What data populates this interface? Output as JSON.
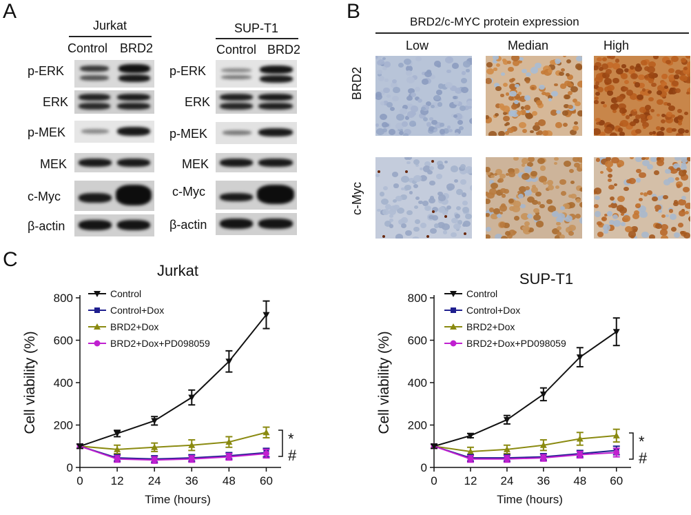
{
  "panels": {
    "a": "A",
    "b": "B",
    "c": "C"
  },
  "western": [
    {
      "cell_line": "Jurkat",
      "conditions": [
        "Control",
        "BRD2"
      ],
      "proteins": [
        "p-ERK",
        "ERK",
        "p-MEK",
        "MEK",
        "c-Myc",
        "β-actin"
      ]
    },
    {
      "cell_line": "SUP-T1",
      "conditions": [
        "Control",
        "BRD2"
      ],
      "proteins": [
        "p-ERK",
        "ERK",
        "p-MEK",
        "MEK",
        "c-Myc",
        "β-actin"
      ]
    }
  ],
  "ihc": {
    "title": "BRD2/c-MYC protein expression",
    "levels": [
      "Low",
      "Median",
      "High"
    ],
    "rows": [
      "BRD2",
      "c-Myc"
    ]
  },
  "significance": {
    "star": "*",
    "hash": "#"
  },
  "chart_data": [
    {
      "type": "line",
      "title": "Jurkat",
      "xlabel": "Time (hours)",
      "ylabel": "Cell viability (%)",
      "x": [
        0,
        12,
        24,
        36,
        48,
        60
      ],
      "xticks": [
        0,
        12,
        24,
        36,
        48,
        60
      ],
      "yticks": [
        0,
        200,
        400,
        600,
        800
      ],
      "xlim": [
        0,
        63
      ],
      "ylim": [
        0,
        800
      ],
      "legend_position": "top-left",
      "series": [
        {
          "name": "Control",
          "color": "#111111",
          "marker": "triangle-down",
          "values": [
            100,
            160,
            220,
            330,
            500,
            720
          ],
          "errors": [
            10,
            15,
            20,
            35,
            50,
            65
          ]
        },
        {
          "name": "Control+Dox",
          "color": "#1f1f8f",
          "marker": "square",
          "values": [
            100,
            45,
            40,
            45,
            55,
            70
          ],
          "errors": [
            10,
            15,
            15,
            15,
            15,
            20
          ]
        },
        {
          "name": "BRD2+Dox",
          "color": "#8a8a10",
          "marker": "triangle-up",
          "values": [
            100,
            85,
            95,
            105,
            120,
            165
          ],
          "errors": [
            10,
            20,
            20,
            25,
            25,
            25
          ]
        },
        {
          "name": "BRD2+Dox+PD098059",
          "color": "#c020d0",
          "marker": "circle",
          "values": [
            100,
            40,
            35,
            40,
            50,
            65
          ],
          "errors": [
            10,
            15,
            15,
            15,
            15,
            20
          ]
        }
      ]
    },
    {
      "type": "line",
      "title": "SUP-T1",
      "xlabel": "Time (hours)",
      "ylabel": "Cell viability (%)",
      "x": [
        0,
        12,
        24,
        36,
        48,
        60
      ],
      "xticks": [
        0,
        12,
        24,
        36,
        48,
        60
      ],
      "yticks": [
        0,
        200,
        400,
        600,
        800
      ],
      "xlim": [
        0,
        63
      ],
      "ylim": [
        0,
        800
      ],
      "legend_position": "top-left",
      "series": [
        {
          "name": "Control",
          "color": "#111111",
          "marker": "triangle-down",
          "values": [
            100,
            150,
            225,
            345,
            520,
            640
          ],
          "errors": [
            10,
            10,
            20,
            30,
            45,
            65
          ]
        },
        {
          "name": "Control+Dox",
          "color": "#1f1f8f",
          "marker": "square",
          "values": [
            100,
            45,
            45,
            50,
            65,
            80
          ],
          "errors": [
            10,
            15,
            15,
            15,
            15,
            20
          ]
        },
        {
          "name": "BRD2+Dox",
          "color": "#8a8a10",
          "marker": "triangle-up",
          "values": [
            100,
            75,
            85,
            105,
            135,
            150
          ],
          "errors": [
            10,
            20,
            20,
            25,
            30,
            30
          ]
        },
        {
          "name": "BRD2+Dox+PD098059",
          "color": "#c020d0",
          "marker": "circle",
          "values": [
            100,
            40,
            40,
            45,
            60,
            70
          ],
          "errors": [
            10,
            15,
            15,
            15,
            15,
            20
          ]
        }
      ]
    }
  ]
}
